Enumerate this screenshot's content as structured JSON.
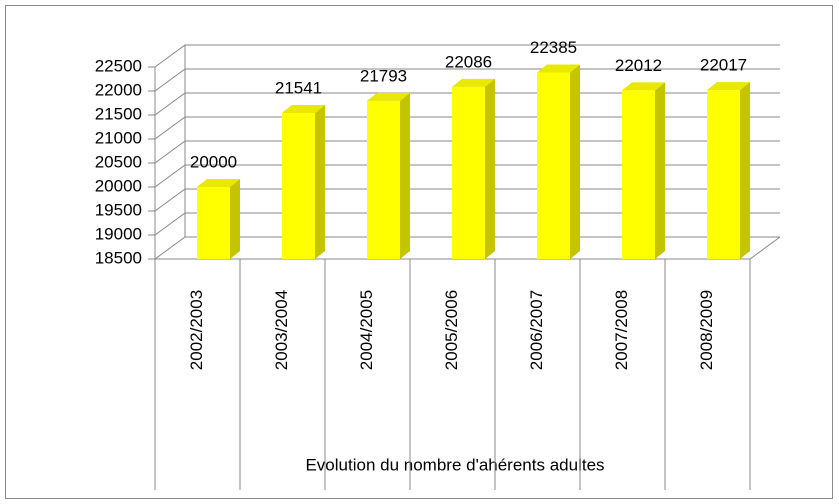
{
  "chart_data": {
    "type": "bar3d",
    "x_label": "Evolution du nombre d'ahérents adultes",
    "categories": [
      "2002/2003",
      "2003/2004",
      "2004/2005",
      "2005/2006",
      "2006/2007",
      "2007/2008",
      "2008/2009"
    ],
    "values": [
      20000,
      21541,
      21793,
      22086,
      22385,
      22012,
      22017
    ],
    "color": "#ffff00",
    "ylim": [
      18500,
      22500
    ],
    "yticks": [
      18500,
      19000,
      19500,
      20000,
      20500,
      21000,
      21500,
      22000,
      22500
    ],
    "grid": true
  }
}
